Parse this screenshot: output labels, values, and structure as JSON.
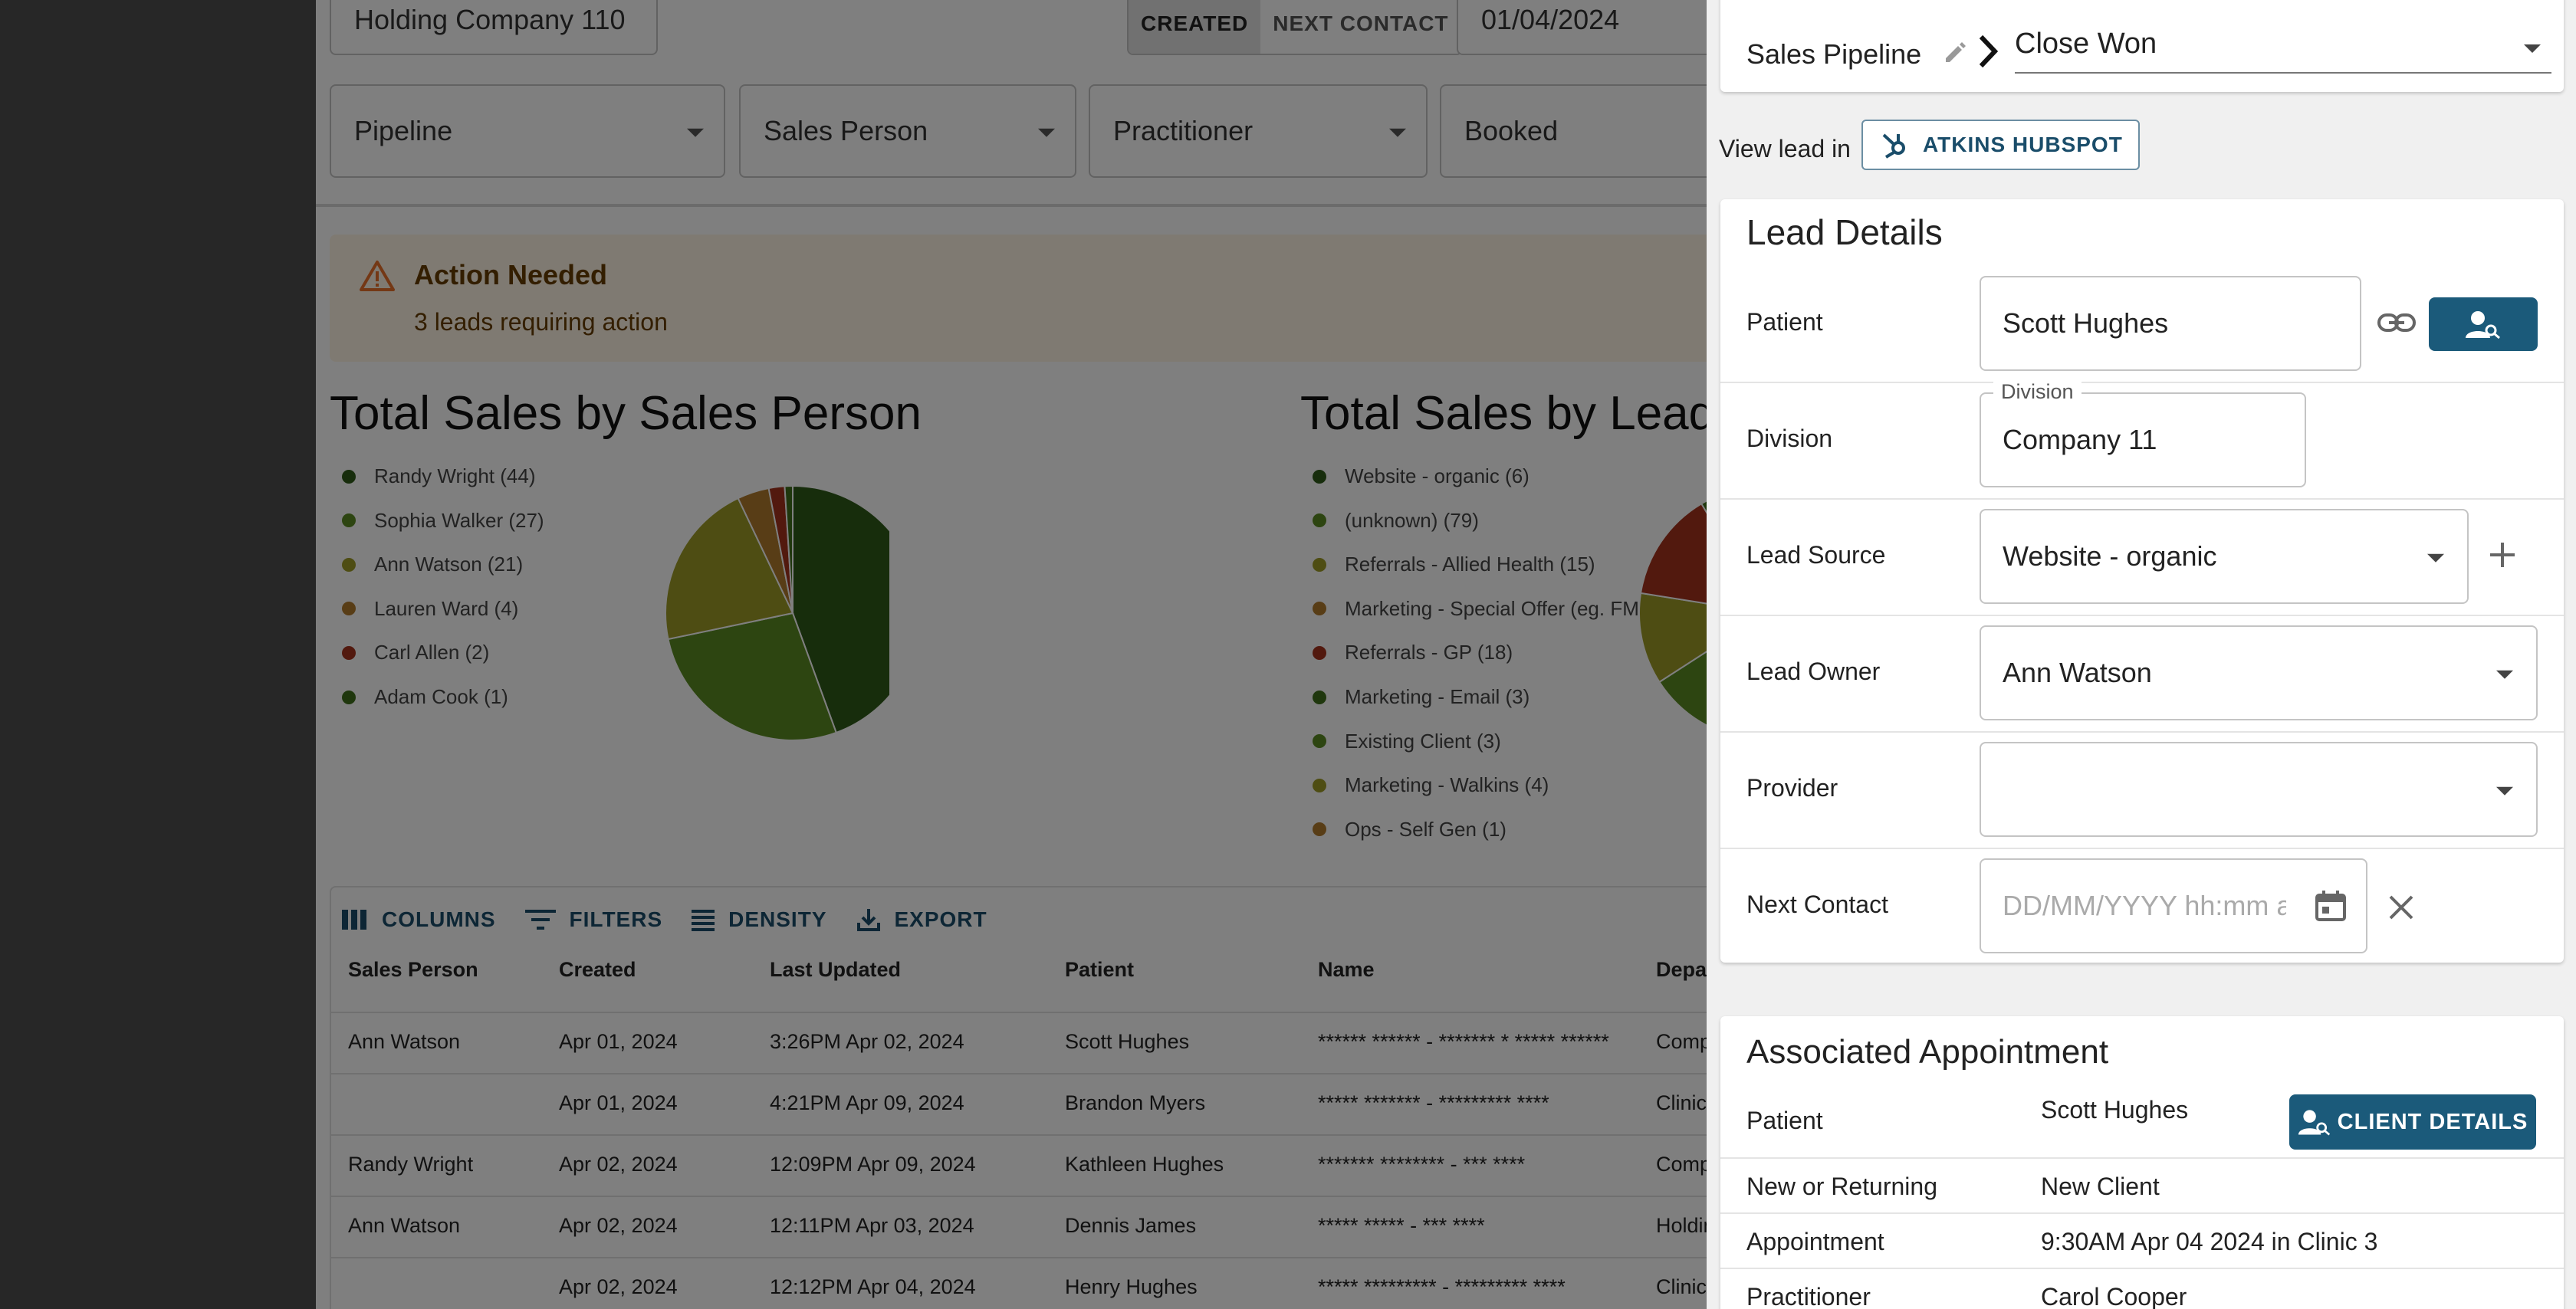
{
  "filters": {
    "search_value": "Holding Company 110",
    "toggle": [
      "CREATED",
      "NEXT CONTACT"
    ],
    "date_value": "01/04/2024",
    "pipeline_label": "Pipeline",
    "sales_person_label": "Sales Person",
    "practitioner_label": "Practitioner",
    "booked_label": "Booked"
  },
  "alert": {
    "title": "Action Needed",
    "message": "3 leads requiring action"
  },
  "chart_data": [
    {
      "type": "pie",
      "title": "Total Sales by Sales Person",
      "categories": [
        "Randy Wright (44)",
        "Sophia Walker (27)",
        "Ann Watson (21)",
        "Lauren Ward (4)",
        "Carl Allen (2)",
        "Adam Cook (1)"
      ],
      "values": [
        44,
        27,
        21,
        4,
        2,
        1
      ],
      "colors": [
        "#2f5a18",
        "#5a8a22",
        "#9c9a26",
        "#b07a2c",
        "#a5321c",
        "#3f6e1a"
      ]
    },
    {
      "type": "pie",
      "title": "Total Sales by Lead S",
      "categories": [
        "Website - organic (6)",
        "(unknown) (79)",
        "Referrals - Allied Health (15)",
        "Marketing - Special Offer (eg. FM",
        "Referrals - GP (18)",
        "Marketing - Email (3)",
        "Existing Client (3)",
        "Marketing - Walkins (4)",
        "Ops - Self Gen (1)"
      ],
      "values": [
        6,
        79,
        15,
        0,
        18,
        3,
        3,
        4,
        1
      ],
      "colors": [
        "#2f5a18",
        "#5a8a22",
        "#9c9a26",
        "#b07a2c",
        "#a5321c",
        "#3f6e1a",
        "#5a8a22",
        "#9c9a26",
        "#b07a2c"
      ]
    }
  ],
  "toolbar": {
    "columns": "COLUMNS",
    "filters": "FILTERS",
    "density": "DENSITY",
    "export": "EXPORT"
  },
  "table": {
    "headers": [
      "Sales Person",
      "Created",
      "Last Updated",
      "Patient",
      "Name",
      "Depar"
    ],
    "rows": [
      [
        "Ann Watson",
        "Apr 01, 2024",
        "3:26PM Apr 02, 2024",
        "Scott Hughes",
        "****** ****** - ******* * ***** ******",
        "Comp"
      ],
      [
        "",
        "Apr 01, 2024",
        "4:21PM Apr 09, 2024",
        "Brandon Myers",
        "***** ******* - ********* ****",
        "Clinic"
      ],
      [
        "Randy Wright",
        "Apr 02, 2024",
        "12:09PM Apr 09, 2024",
        "Kathleen Hughes",
        "******* ******** - *** ****",
        "Comp"
      ],
      [
        "Ann Watson",
        "Apr 02, 2024",
        "12:11PM Apr 03, 2024",
        "Dennis James",
        "***** ***** - *** ****",
        "Holdin"
      ],
      [
        "",
        "Apr 02, 2024",
        "12:12PM Apr 04, 2024",
        "Henry Hughes",
        "***** ********* - ********* ****",
        "Clinic"
      ]
    ]
  },
  "panel": {
    "pipeline_label": "Sales Pipeline",
    "stage_value": "Close Won",
    "view_lead_label": "View lead in",
    "hubspot_button": "ATKINS HUBSPOT",
    "lead_details": {
      "title": "Lead Details",
      "patient_label": "Patient",
      "patient_value": "Scott Hughes",
      "division_label": "Division",
      "division_float_label": "Division",
      "division_value": "Company 11",
      "lead_source_label": "Lead Source",
      "lead_source_value": "Website - organic",
      "lead_owner_label": "Lead Owner",
      "lead_owner_value": "Ann Watson",
      "provider_label": "Provider",
      "provider_value": "",
      "next_contact_label": "Next Contact",
      "next_contact_placeholder": "DD/MM/YYYY hh:mm a"
    },
    "appointment": {
      "title": "Associated Appointment",
      "patient_label": "Patient",
      "patient_value": "Scott Hughes",
      "client_details_button": "CLIENT DETAILS",
      "new_returning_label": "New or Returning",
      "new_returning_value": "New Client",
      "appointment_label": "Appointment",
      "appointment_value": "9:30AM Apr 04 2024 in Clinic 3",
      "practitioner_label": "Practitioner",
      "practitioner_value": "Carol Cooper"
    }
  },
  "colors": {
    "accent": "#1b5a7a",
    "alert_bg": "#fff4e5",
    "alert_text": "#663c00"
  }
}
